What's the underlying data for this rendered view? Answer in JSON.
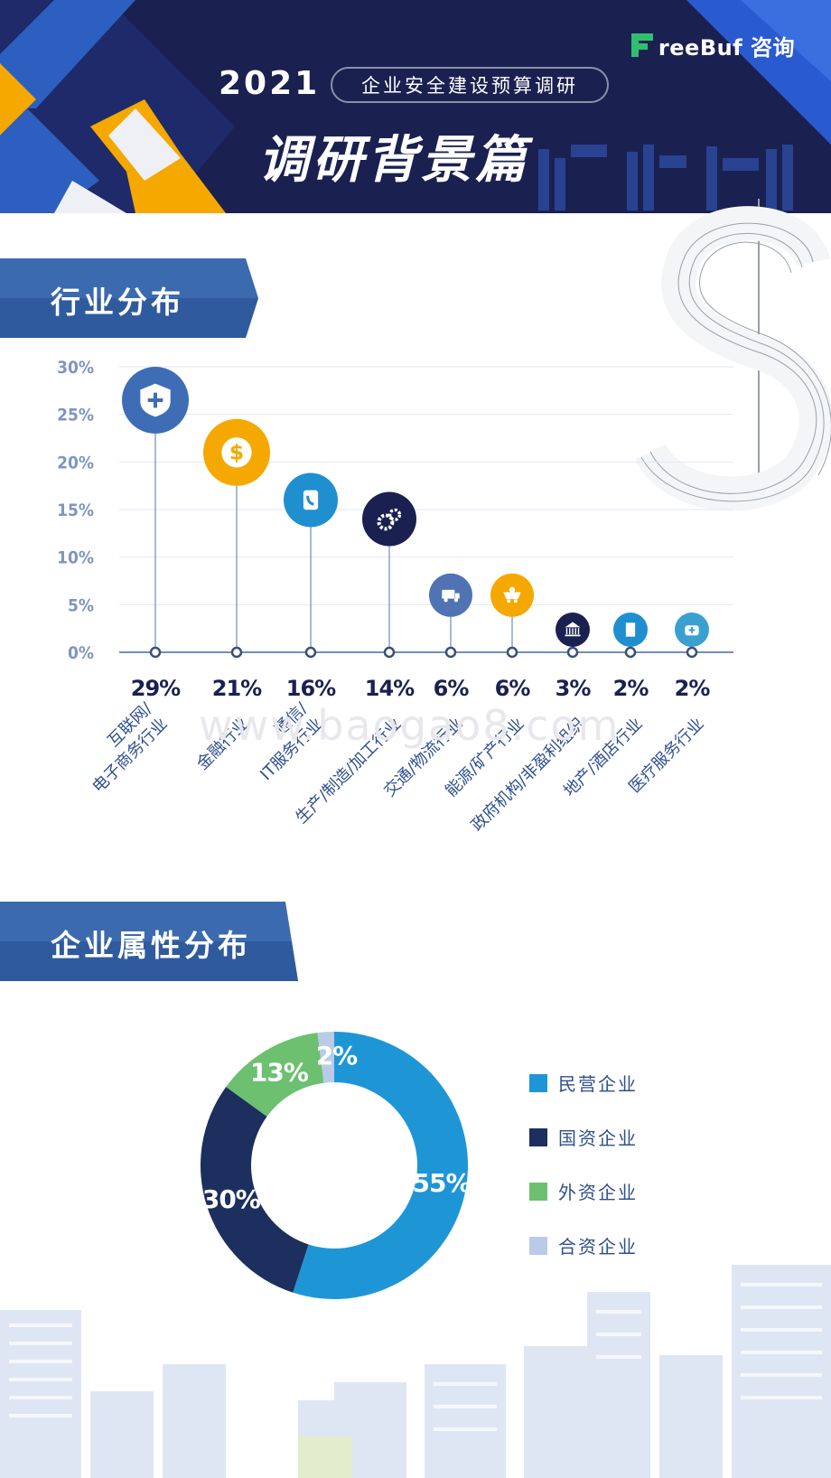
{
  "header": {
    "brand": "reeBuf 咨询",
    "year": "2021",
    "subtitle": "企业安全建设预算调研",
    "title": "调研背景篇"
  },
  "watermark": "www.baogao8.com",
  "section_industry": {
    "title": "行业分布"
  },
  "section_ownership": {
    "title": "企业属性分布"
  },
  "chart_data": [
    {
      "type": "bar",
      "ylim": [
        0,
        30
      ],
      "ytick_labels": [
        "0%",
        "5%",
        "10%",
        "15%",
        "20%",
        "25%",
        "30%"
      ],
      "yticks": [
        0,
        5,
        10,
        15,
        20,
        25,
        30
      ],
      "categories": [
        "互联网/电子商务行业",
        "金融行业",
        "通信/IT服务行业",
        "生产/制造/加工行业",
        "交通/物流行业",
        "能源/矿产行业",
        "政府机构/非盈利组织",
        "地产/酒店行业",
        "医疗服务行业"
      ],
      "category_lines": [
        [
          "互联网/",
          "电子商务行业"
        ],
        [
          "金融行业"
        ],
        [
          "通信/",
          "IT服务行业"
        ],
        [
          "生产/制造/加工行业"
        ],
        [
          "交通/物流行业"
        ],
        [
          "能源/矿产行业"
        ],
        [
          "政府机构/非盈利组织"
        ],
        [
          "地产/酒店行业"
        ],
        [
          "医疗服务行业"
        ]
      ],
      "values": [
        29,
        21,
        16,
        14,
        6,
        6,
        3,
        2,
        2
      ],
      "value_labels": [
        "29%",
        "21%",
        "16%",
        "14%",
        "6%",
        "6%",
        "3%",
        "2%",
        "2%"
      ],
      "icons": [
        "shield-plus-icon",
        "dollar-coin-icon",
        "phone-book-icon",
        "gears-icon",
        "truck-icon",
        "mine-cart-icon",
        "bank-icon",
        "building-icon",
        "medical-kit-icon"
      ],
      "colors": [
        "#3e6db5",
        "#f5a800",
        "#1f8fd0",
        "#1a2150",
        "#4f73b3",
        "#f5a800",
        "#1a2150",
        "#1f8fd0",
        "#3aa0d0"
      ]
    },
    {
      "type": "pie",
      "donut": true,
      "categories": [
        "民营企业",
        "国资企业",
        "外资企业",
        "合资企业"
      ],
      "values": [
        55,
        30,
        13,
        2
      ],
      "value_labels": [
        "55%",
        "30%",
        "13%",
        "2%"
      ],
      "colors": [
        "#1e96d6",
        "#1c2f5e",
        "#6cc070",
        "#b9cbe6"
      ],
      "legend_position": "right"
    }
  ]
}
